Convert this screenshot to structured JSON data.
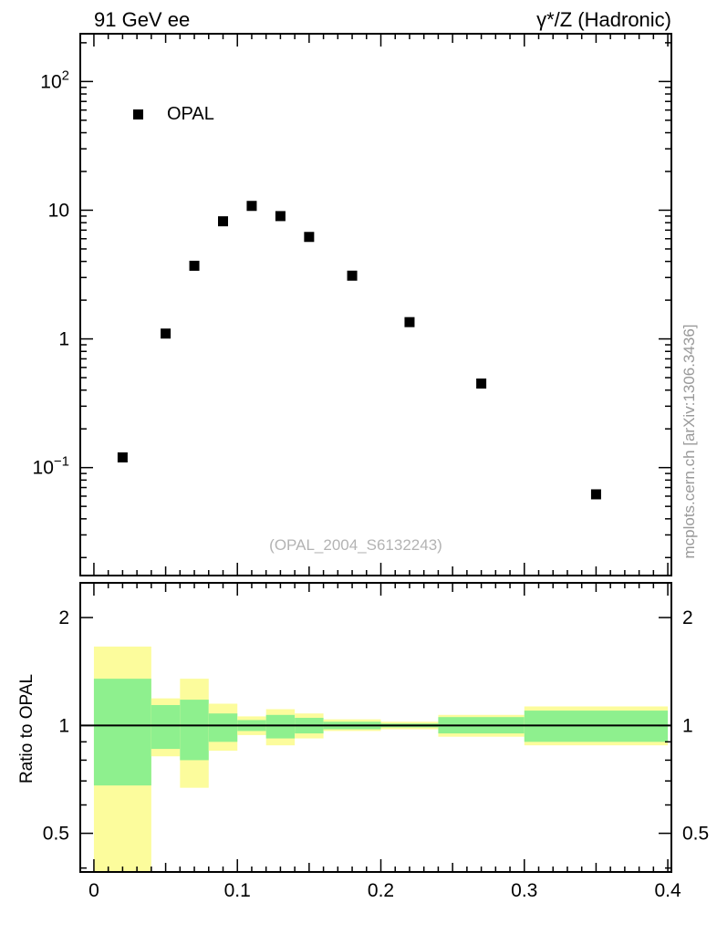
{
  "titles": {
    "left": "91 GeV ee",
    "right": "γ*/Z (Hadronic)"
  },
  "legend": {
    "entries": [
      {
        "label": "OPAL",
        "marker": "filled-square",
        "color": "#000000"
      }
    ]
  },
  "watermark": "(OPAL_2004_S6132243)",
  "side_label": "mcplots.cern.ch [arXiv:1306.3436]",
  "chart_data": [
    {
      "type": "scatter",
      "panel": "main",
      "yscale": "log",
      "xlim": [
        -0.0095,
        0.4025
      ],
      "ylim": [
        0.0145,
        235
      ],
      "yticks": [
        100,
        10,
        1,
        0.1
      ],
      "grid": false,
      "legend_position": "top-left",
      "series": [
        {
          "name": "OPAL",
          "marker": "filled-square",
          "color": "#000000",
          "x": [
            0.02,
            0.05,
            0.07,
            0.09,
            0.11,
            0.13,
            0.15,
            0.18,
            0.22,
            0.27,
            0.35
          ],
          "y": [
            0.12,
            1.1,
            3.7,
            8.2,
            10.8,
            9.0,
            6.2,
            3.1,
            1.35,
            0.45,
            0.062
          ]
        }
      ]
    },
    {
      "type": "ratio-bands",
      "panel": "ratio",
      "ylabel": "Ratio to OPAL",
      "yscale": "log",
      "xlim": [
        -0.0095,
        0.4025
      ],
      "ylim": [
        0.39,
        2.5
      ],
      "yticks": [
        2,
        1,
        0.5
      ],
      "yticks_minor": [
        0.4,
        0.6,
        0.7,
        0.8,
        0.9
      ],
      "xticks": [
        0,
        0.1,
        0.2,
        0.3,
        0.4
      ],
      "reference_line": 1,
      "colors": {
        "yellow": "#fcfc9c",
        "green": "#8ef08e"
      },
      "bands": [
        {
          "x1": 0.0,
          "x2": 0.04,
          "yellow": [
            0.39,
            1.66
          ],
          "green": [
            0.68,
            1.35
          ]
        },
        {
          "x1": 0.04,
          "x2": 0.06,
          "yellow": [
            0.82,
            1.19
          ],
          "green": [
            0.86,
            1.14
          ]
        },
        {
          "x1": 0.06,
          "x2": 0.08,
          "yellow": [
            0.67,
            1.35
          ],
          "green": [
            0.8,
            1.18
          ]
        },
        {
          "x1": 0.08,
          "x2": 0.1,
          "yellow": [
            0.85,
            1.15
          ],
          "green": [
            0.9,
            1.08
          ]
        },
        {
          "x1": 0.1,
          "x2": 0.12,
          "yellow": [
            0.94,
            1.06
          ],
          "green": [
            0.965,
            1.035
          ]
        },
        {
          "x1": 0.12,
          "x2": 0.14,
          "yellow": [
            0.88,
            1.11
          ],
          "green": [
            0.92,
            1.07
          ]
        },
        {
          "x1": 0.14,
          "x2": 0.16,
          "yellow": [
            0.92,
            1.08
          ],
          "green": [
            0.95,
            1.05
          ]
        },
        {
          "x1": 0.16,
          "x2": 0.2,
          "yellow": [
            0.965,
            1.04
          ],
          "green": [
            0.976,
            1.024
          ]
        },
        {
          "x1": 0.2,
          "x2": 0.24,
          "yellow": [
            0.976,
            1.024
          ],
          "green": [
            0.988,
            1.012
          ]
        },
        {
          "x1": 0.24,
          "x2": 0.3,
          "yellow": [
            0.93,
            1.07
          ],
          "green": [
            0.95,
            1.055
          ]
        },
        {
          "x1": 0.3,
          "x2": 0.4,
          "yellow": [
            0.88,
            1.13
          ],
          "green": [
            0.9,
            1.1
          ]
        }
      ]
    }
  ]
}
